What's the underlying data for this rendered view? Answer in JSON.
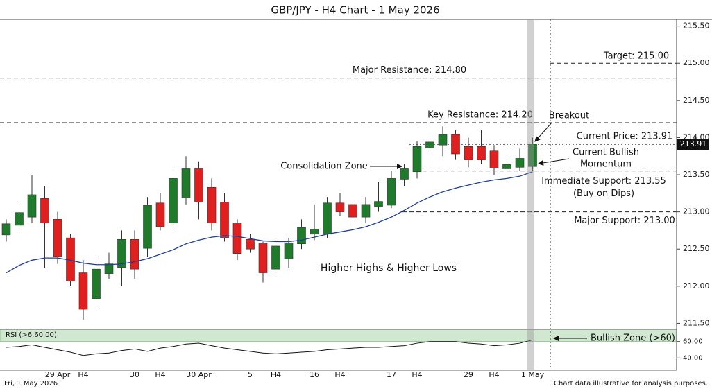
{
  "chart_data": {
    "type": "candlestick",
    "title": "GBP/JPY - H4 Chart - 1 May 2026",
    "categories": [
      null,
      null,
      null,
      null,
      "29 Apr",
      null,
      "H4",
      null,
      null,
      null,
      "30",
      null,
      "H4",
      null,
      null,
      "30 Apr",
      null,
      null,
      null,
      "5",
      null,
      "H4",
      null,
      null,
      "16",
      null,
      "H4",
      null,
      null,
      null,
      "17",
      null,
      "H4",
      null,
      null,
      null,
      "29",
      null,
      "H4",
      null,
      null,
      "1 May"
    ],
    "open": [
      212.69,
      212.82,
      212.93,
      213.18,
      212.9,
      212.65,
      212.18,
      211.83,
      212.17,
      212.25,
      212.63,
      212.51,
      213.12,
      212.85,
      213.19,
      213.58,
      213.33,
      213.13,
      212.85,
      212.63,
      212.58,
      212.23,
      212.37,
      212.57,
      212.7,
      212.7,
      213.12,
      213.1,
      212.93,
      213.07,
      213.09,
      213.44,
      213.54,
      213.86,
      213.9,
      214.04,
      213.88,
      213.88,
      213.82,
      213.58,
      213.6,
      213.61
    ],
    "high": [
      212.9,
      213.1,
      213.5,
      213.35,
      213.0,
      212.7,
      212.35,
      212.35,
      212.45,
      212.75,
      212.75,
      213.2,
      213.25,
      213.55,
      213.75,
      213.68,
      213.45,
      213.25,
      212.9,
      212.7,
      212.6,
      212.6,
      212.65,
      212.9,
      213.1,
      213.2,
      213.25,
      213.15,
      213.2,
      213.4,
      213.55,
      213.65,
      213.95,
      214.0,
      214.15,
      214.1,
      214.0,
      214.1,
      213.9,
      213.75,
      213.85,
      214.0
    ],
    "low": [
      212.6,
      212.72,
      212.85,
      212.25,
      212.3,
      212.0,
      211.55,
      211.7,
      212.1,
      212.0,
      212.1,
      212.4,
      212.75,
      212.75,
      213.1,
      212.9,
      212.75,
      212.6,
      212.35,
      212.45,
      212.05,
      212.15,
      212.25,
      212.5,
      212.62,
      212.65,
      212.95,
      212.85,
      212.85,
      213.0,
      213.05,
      213.35,
      213.45,
      213.8,
      213.75,
      213.7,
      213.6,
      213.65,
      213.5,
      213.45,
      213.55,
      213.55
    ],
    "close": [
      212.84,
      212.99,
      213.23,
      212.85,
      212.4,
      212.07,
      211.69,
      212.23,
      212.3,
      212.63,
      212.23,
      213.09,
      212.8,
      213.45,
      213.58,
      213.13,
      212.85,
      212.65,
      212.44,
      212.5,
      212.18,
      212.54,
      212.58,
      212.79,
      212.77,
      213.12,
      213.0,
      212.93,
      213.1,
      213.14,
      213.45,
      213.58,
      213.88,
      213.94,
      214.04,
      213.78,
      213.7,
      213.7,
      213.59,
      213.64,
      213.72,
      213.91
    ],
    "up_color": "#1f7a2c",
    "down_color": "#e01f1f",
    "ma_values": [
      212.18,
      212.28,
      212.35,
      212.38,
      212.38,
      212.35,
      212.31,
      212.29,
      212.29,
      212.3,
      212.33,
      212.37,
      212.43,
      212.49,
      212.57,
      212.62,
      212.66,
      212.68,
      212.67,
      212.64,
      212.61,
      212.6,
      212.6,
      212.62,
      212.66,
      212.7,
      212.73,
      212.76,
      212.8,
      212.86,
      212.93,
      213.02,
      213.12,
      213.2,
      213.27,
      213.32,
      213.36,
      213.4,
      213.43,
      213.45,
      213.48,
      213.54
    ],
    "ma_color": "#1f3f8f",
    "ylim": [
      211.42,
      215.59
    ],
    "yticks": [
      {
        "value": 211.5,
        "label": "211.50"
      },
      {
        "value": 212.0,
        "label": "212.00"
      },
      {
        "value": 212.5,
        "label": "212.50"
      },
      {
        "value": 213.0,
        "label": "213.00"
      },
      {
        "value": 213.5,
        "label": "213.50"
      },
      {
        "value": 214.0,
        "label": "214.00"
      },
      {
        "value": 214.5,
        "label": "214.50"
      },
      {
        "value": 215.0,
        "label": "215.00"
      },
      {
        "value": 215.5,
        "label": "215.50"
      }
    ],
    "levels": [
      {
        "value": 215.0,
        "label": "Target: 215.00"
      },
      {
        "value": 214.8,
        "label": "Major Resistance: 214.80"
      },
      {
        "value": 214.2,
        "label": "Key Resistance: 214.20"
      },
      {
        "value": 213.91,
        "label": "Current Price: 213.91"
      },
      {
        "value": 213.55,
        "label": "Immediate Support: 213.55",
        "note": "(Buy on Dips)"
      },
      {
        "value": 213.0,
        "label": "Major Support: 213.00"
      }
    ],
    "price_tag": {
      "value": 213.91,
      "label": "213.91"
    },
    "annotations": [
      "Breakout",
      "Current Bullish",
      "Momentum",
      "Consolidation Zone",
      "Higher Highs & Higher Lows",
      "Bullish Zone (>60)"
    ],
    "rsi": {
      "label": "RSI (>6.60.00)",
      "values": [
        53,
        54,
        56,
        53,
        50,
        47,
        43,
        45,
        46,
        49,
        51,
        48,
        52,
        54,
        57,
        58,
        55,
        52,
        50,
        48,
        46,
        45,
        46,
        47,
        48,
        50,
        51,
        52,
        53,
        53,
        54,
        55,
        58,
        60,
        60,
        60,
        58,
        57,
        55,
        56,
        58,
        62
      ],
      "ylim": [
        25,
        75
      ],
      "yticks": [
        {
          "value": 60,
          "label": "60.00"
        },
        {
          "value": 40,
          "label": "40.00"
        }
      ],
      "zone": 60,
      "zone_color": "#cfe8cf"
    },
    "footer_left": "Fri, 1 May 2026",
    "footer_right": "Chart data illustrative for analysis purposes."
  }
}
